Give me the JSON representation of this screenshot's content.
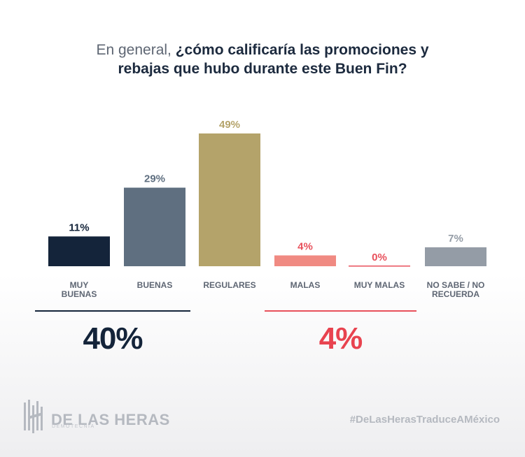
{
  "title": {
    "light": "En general, ",
    "bold_line1": "¿cómo calificaría las promociones y",
    "bold_line2": "rebajas que hubo durante este Buen Fin?"
  },
  "chart_data": {
    "type": "bar",
    "categories": [
      "MUY BUENAS",
      "BUENAS",
      "REGULARES",
      "MALAS",
      "MUY MALAS",
      "NO SABE / NO RECUERDA"
    ],
    "category_lines": [
      [
        "MUY",
        "BUENAS"
      ],
      [
        "BUENAS"
      ],
      [
        "REGULARES"
      ],
      [
        "MALAS"
      ],
      [
        "MUY MALAS"
      ],
      [
        "NO SABE / NO",
        "RECUERDA"
      ]
    ],
    "values": [
      11,
      29,
      49,
      4,
      0,
      7
    ],
    "value_labels": [
      "11%",
      "29%",
      "49%",
      "4%",
      "0%",
      "7%"
    ],
    "colors": [
      "#14243a",
      "#5f6f80",
      "#b4a36a",
      "#f08a82",
      "#e8505b",
      "#949ca6"
    ],
    "label_colors": [
      "#14243a",
      "#5f6f80",
      "#b4a36a",
      "#e8505b",
      "#e8505b",
      "#949ca6"
    ],
    "ylim": [
      0,
      49
    ]
  },
  "summary": {
    "positive": {
      "value": "40%",
      "color": "#14243a"
    },
    "negative": {
      "value": "4%",
      "color": "#e8434f"
    }
  },
  "footer": {
    "logo_name": "DE LAS HERAS",
    "logo_sub": "DEMOTECNIA",
    "hashtag": "#DeLasHerasTraduceAMéxico"
  }
}
